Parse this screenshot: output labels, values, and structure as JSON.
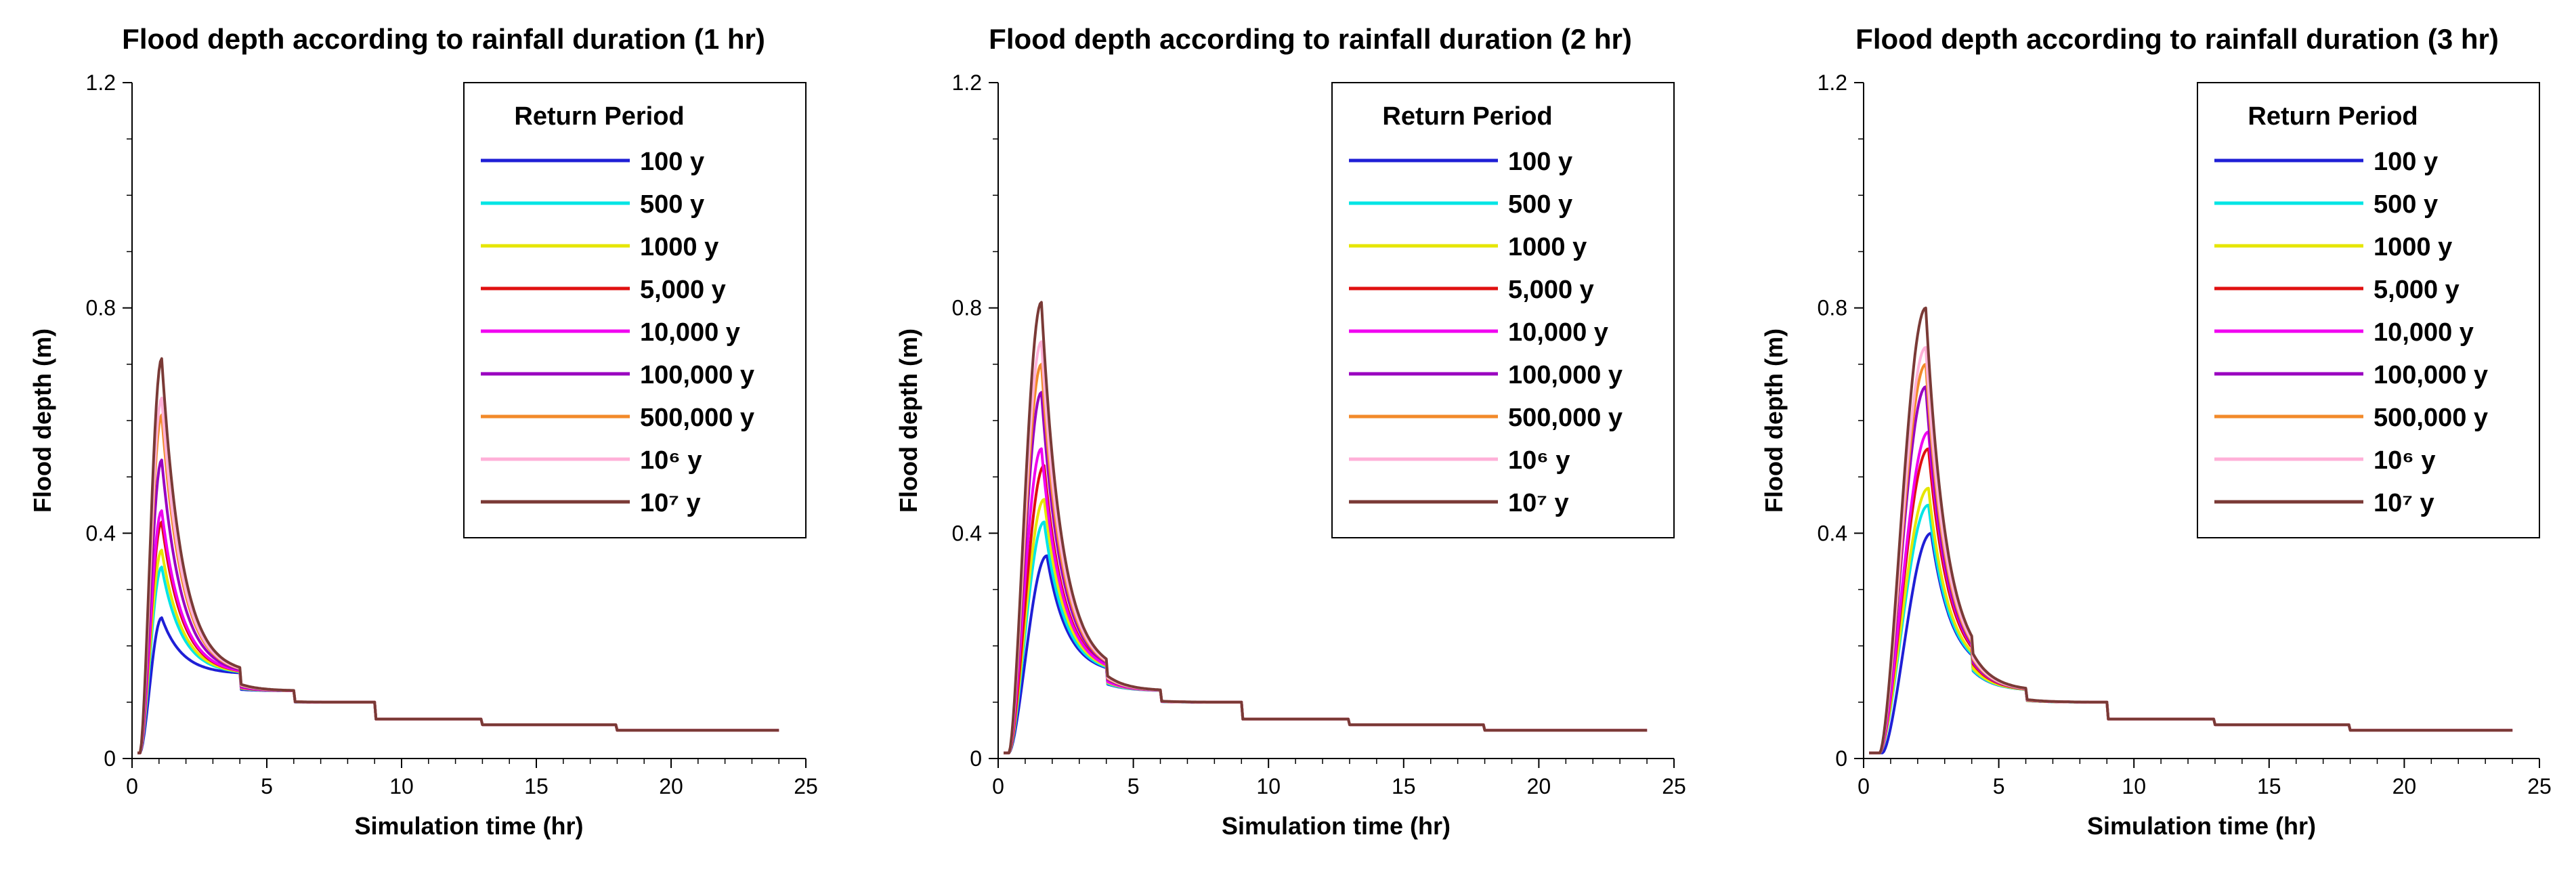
{
  "chart_data": [
    {
      "type": "line",
      "title": "Flood depth according to rainfall duration (1 hr)",
      "xlabel": "Simulation time (hr)",
      "ylabel": "Flood depth (m)",
      "xlim": [
        0,
        25
      ],
      "ylim": [
        0,
        1.2
      ],
      "xticks": [
        "0",
        "5",
        "10",
        "15",
        "20",
        "25"
      ],
      "yticks": [
        "0",
        "0.4",
        "0.8",
        "1.2"
      ],
      "legend_title": "Return Period",
      "legend_position": "top-right",
      "series": [
        {
          "name": "100 y",
          "color": "#1f1fd6",
          "peak_time": 1.1,
          "peak": 0.25,
          "rise": 0.8
        },
        {
          "name": "500 y",
          "color": "#00e5e5",
          "peak_time": 1.1,
          "peak": 0.34,
          "rise": 0.8
        },
        {
          "name": "1000 y",
          "color": "#e6e600",
          "peak_time": 1.1,
          "peak": 0.37,
          "rise": 0.8
        },
        {
          "name": "5,000 y",
          "color": "#e01010",
          "peak_time": 1.1,
          "peak": 0.42,
          "rise": 0.8
        },
        {
          "name": "10,000 y",
          "color": "#f000f0",
          "peak_time": 1.1,
          "peak": 0.44,
          "rise": 0.8
        },
        {
          "name": "100,000 y",
          "color": "#9a00c0",
          "peak_time": 1.1,
          "peak": 0.53,
          "rise": 0.8
        },
        {
          "name": "500,000 y",
          "color": "#f28a2a",
          "peak_time": 1.1,
          "peak": 0.61,
          "rise": 0.8
        },
        {
          "name": "10⁶ y",
          "color": "#ffb0d8",
          "peak_time": 1.1,
          "peak": 0.64,
          "rise": 0.8
        },
        {
          "name": "10⁷ y",
          "color": "#7a3a36",
          "peak_time": 1.1,
          "peak": 0.71,
          "rise": 0.8
        }
      ]
    },
    {
      "type": "line",
      "title": "Flood depth according to rainfall duration (2 hr)",
      "xlabel": "Simulation time (hr)",
      "ylabel": "Flood depth (m)",
      "xlim": [
        0,
        25
      ],
      "ylim": [
        0,
        1.2
      ],
      "xticks": [
        "0",
        "5",
        "10",
        "15",
        "20",
        "25"
      ],
      "yticks": [
        "0",
        "0.4",
        "0.8",
        "1.2"
      ],
      "legend_title": "Return Period",
      "legend_position": "top-right",
      "series": [
        {
          "name": "100 y",
          "color": "#1f1fd6",
          "peak_time": 1.8,
          "peak": 0.36,
          "rise": 1.4
        },
        {
          "name": "500 y",
          "color": "#00e5e5",
          "peak_time": 1.7,
          "peak": 0.42,
          "rise": 1.3
        },
        {
          "name": "1000 y",
          "color": "#e6e600",
          "peak_time": 1.7,
          "peak": 0.46,
          "rise": 1.3
        },
        {
          "name": "5,000 y",
          "color": "#e01010",
          "peak_time": 1.7,
          "peak": 0.52,
          "rise": 1.3
        },
        {
          "name": "10,000 y",
          "color": "#f000f0",
          "peak_time": 1.6,
          "peak": 0.55,
          "rise": 1.2
        },
        {
          "name": "100,000 y",
          "color": "#9a00c0",
          "peak_time": 1.6,
          "peak": 0.65,
          "rise": 1.2
        },
        {
          "name": "500,000 y",
          "color": "#f28a2a",
          "peak_time": 1.6,
          "peak": 0.7,
          "rise": 1.2
        },
        {
          "name": "10⁶ y",
          "color": "#ffb0d8",
          "peak_time": 1.6,
          "peak": 0.74,
          "rise": 1.2
        },
        {
          "name": "10⁷ y",
          "color": "#7a3a36",
          "peak_time": 1.6,
          "peak": 0.81,
          "rise": 1.2
        }
      ]
    },
    {
      "type": "line",
      "title": "Flood depth according to rainfall duration (3 hr)",
      "xlabel": "Simulation time (hr)",
      "ylabel": "Flood depth (m)",
      "xlim": [
        0,
        25
      ],
      "ylim": [
        0,
        1.2
      ],
      "xticks": [
        "0",
        "5",
        "10",
        "15",
        "20",
        "25"
      ],
      "yticks": [
        "0",
        "0.4",
        "0.8",
        "1.2"
      ],
      "legend_title": "Return Period",
      "legend_position": "top-right",
      "series": [
        {
          "name": "100 y",
          "color": "#1f1fd6",
          "peak_time": 2.5,
          "peak": 0.4,
          "rise": 1.8
        },
        {
          "name": "500 y",
          "color": "#00e5e5",
          "peak_time": 2.4,
          "peak": 0.45,
          "rise": 1.8
        },
        {
          "name": "1000 y",
          "color": "#e6e600",
          "peak_time": 2.4,
          "peak": 0.48,
          "rise": 1.8
        },
        {
          "name": "5,000 y",
          "color": "#e01010",
          "peak_time": 2.4,
          "peak": 0.55,
          "rise": 1.8
        },
        {
          "name": "10,000 y",
          "color": "#f000f0",
          "peak_time": 2.4,
          "peak": 0.58,
          "rise": 1.8
        },
        {
          "name": "100,000 y",
          "color": "#9a00c0",
          "peak_time": 2.3,
          "peak": 0.66,
          "rise": 1.7
        },
        {
          "name": "500,000 y",
          "color": "#f28a2a",
          "peak_time": 2.3,
          "peak": 0.7,
          "rise": 1.7
        },
        {
          "name": "10⁶ y",
          "color": "#ffb0d8",
          "peak_time": 2.3,
          "peak": 0.73,
          "rise": 1.7
        },
        {
          "name": "10⁷ y",
          "color": "#7a3a36",
          "peak_time": 2.3,
          "peak": 0.8,
          "rise": 1.7
        }
      ]
    }
  ]
}
